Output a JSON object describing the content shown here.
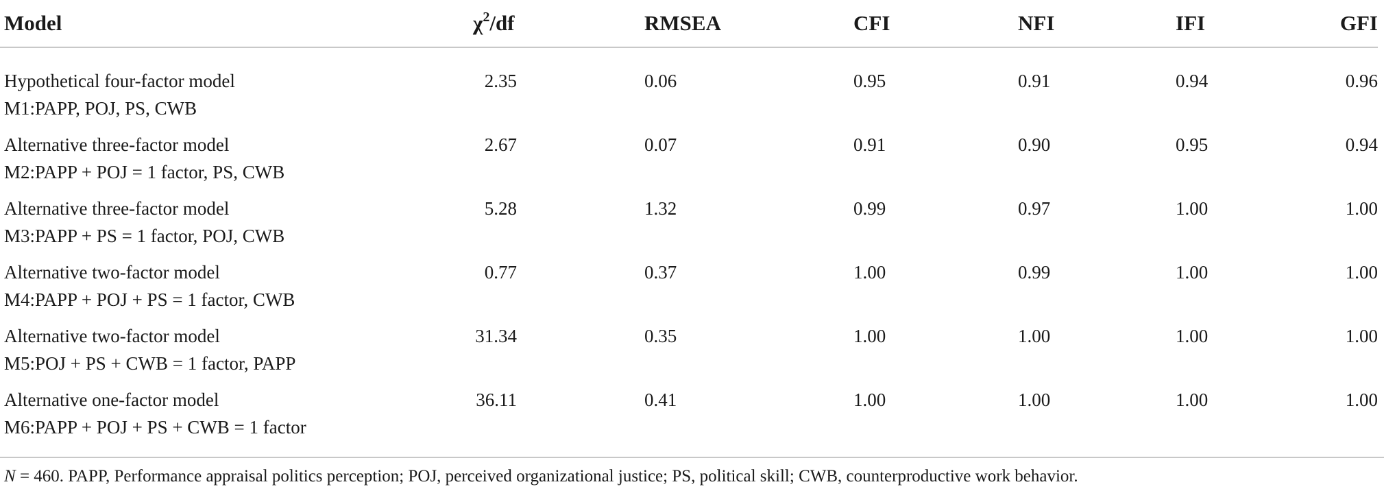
{
  "table": {
    "headers": {
      "model": "Model",
      "chi_main": "χ",
      "chi_sup": "2",
      "chi_rest": "/df",
      "rmsea": "RMSEA",
      "cfi": "CFI",
      "nfi": "NFI",
      "ifi": "IFI",
      "gfi": "GFI"
    },
    "rows": [
      {
        "name": "Hypothetical four-factor model",
        "spec": "M1:PAPP, POJ, PS, CWB",
        "chi": "2.35",
        "rmsea": "0.06",
        "cfi": "0.95",
        "nfi": "0.91",
        "ifi": "0.94",
        "gfi": "0.96"
      },
      {
        "name": "Alternative three-factor model",
        "spec": "M2:PAPP + POJ = 1 factor, PS, CWB",
        "chi": "2.67",
        "rmsea": "0.07",
        "cfi": "0.91",
        "nfi": "0.90",
        "ifi": "0.95",
        "gfi": "0.94"
      },
      {
        "name": "Alternative three-factor model",
        "spec": "M3:PAPP + PS = 1 factor, POJ, CWB",
        "chi": "5.28",
        "rmsea": "1.32",
        "cfi": "0.99",
        "nfi": "0.97",
        "ifi": "1.00",
        "gfi": "1.00"
      },
      {
        "name": "Alternative two-factor model",
        "spec": "M4:PAPP + POJ + PS = 1 factor, CWB",
        "chi": "0.77",
        "rmsea": "0.37",
        "cfi": "1.00",
        "nfi": "0.99",
        "ifi": "1.00",
        "gfi": "1.00"
      },
      {
        "name": "Alternative two-factor model",
        "spec": "M5:POJ + PS + CWB = 1 factor, PAPP",
        "chi": "31.34",
        "rmsea": "0.35",
        "cfi": "1.00",
        "nfi": "1.00",
        "ifi": "1.00",
        "gfi": "1.00"
      },
      {
        "name": "Alternative one-factor model",
        "spec": "M6:PAPP + POJ + PS + CWB = 1 factor",
        "chi": "36.11",
        "rmsea": "0.41",
        "cfi": "1.00",
        "nfi": "1.00",
        "ifi": "1.00",
        "gfi": "1.00"
      }
    ]
  },
  "note": {
    "n_label": "N",
    "text": " = 460. PAPP, Performance appraisal politics perception; POJ, perceived organizational justice; PS, political skill; CWB, counterproductive work behavior."
  }
}
